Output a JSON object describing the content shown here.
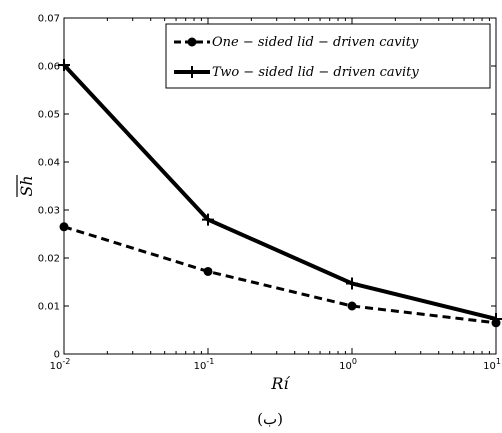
{
  "chart_data": {
    "type": "line",
    "xscale": "log",
    "x": [
      0.01,
      0.1,
      1,
      10
    ],
    "x_ticks": [
      {
        "base": "10",
        "exp": "-2"
      },
      {
        "base": "10",
        "exp": "-1"
      },
      {
        "base": "10",
        "exp": "0"
      },
      {
        "base": "10",
        "exp": "1"
      }
    ],
    "xlim": [
      0.01,
      10
    ],
    "ylim": [
      0,
      0.07
    ],
    "y_ticks": [
      "0",
      "0.01",
      "0.02",
      "0.03",
      "0.04",
      "0.05",
      "0.06",
      "0.07"
    ],
    "xlabel": "Rí",
    "ylabel": "Sh",
    "grid": false,
    "legend_position": "top-right",
    "series": [
      {
        "name": "One − sided lid − driven cavity",
        "values": [
          0.0265,
          0.0172,
          0.01,
          0.0065
        ],
        "style": "dashed",
        "marker": "circle",
        "color": "#000000"
      },
      {
        "name": "Two − sided lid − driven cavity",
        "values": [
          0.0602,
          0.028,
          0.0147,
          0.0073
        ],
        "style": "solid",
        "marker": "plus",
        "color": "#000000"
      }
    ]
  },
  "caption": "(ب)"
}
